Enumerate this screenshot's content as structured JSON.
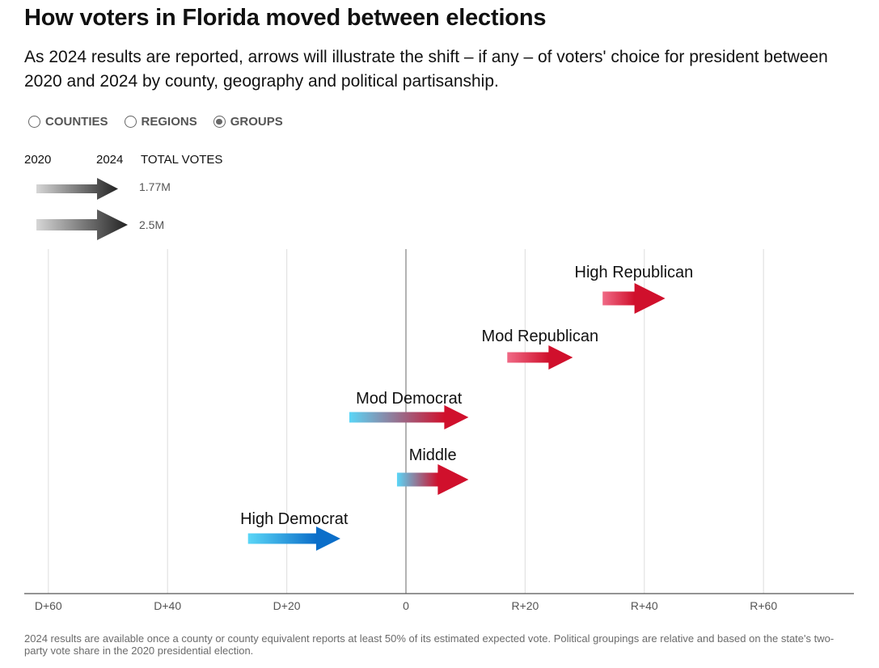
{
  "header": {
    "title": "How voters in Florida moved between elections",
    "subtitle": "As 2024 results are reported, arrows will illustrate the shift – if any – of voters' choice for president between 2020 and 2024 by county, geography and political partisanship."
  },
  "view_toggle": {
    "options": [
      {
        "label": "COUNTIES",
        "selected": false
      },
      {
        "label": "REGIONS",
        "selected": false
      },
      {
        "label": "GROUPS",
        "selected": true
      }
    ]
  },
  "legend": {
    "label_2020": "2020",
    "label_2024": "2024",
    "label_total": "TOTAL VOTES",
    "sizes": [
      {
        "value": "1.77M",
        "votes": 1770000
      },
      {
        "value": "2.5M",
        "votes": 2500000
      }
    ],
    "color_2020": "#d6d6d6",
    "color_2024": "#222222"
  },
  "chart_data": {
    "type": "arrow",
    "x_axis": {
      "min": -60,
      "max": 60,
      "ticks": [
        -60,
        -40,
        -20,
        0,
        20,
        40,
        60
      ],
      "tick_labels": [
        "D+60",
        "D+40",
        "D+20",
        "0",
        "R+20",
        "R+40",
        "R+60"
      ]
    },
    "grid": true,
    "series": [
      {
        "name": "High Republican",
        "from": 33,
        "to": 43.5,
        "color_from": "#f06a86",
        "color_to": "#d0102c",
        "votes": 2500000
      },
      {
        "name": "Mod Republican",
        "from": 17,
        "to": 28,
        "color_from": "#f06a86",
        "color_to": "#d0102c",
        "votes": 1770000
      },
      {
        "name": "Mod Democrat",
        "from": -9.5,
        "to": 10.5,
        "color_from": "#5ad6f7",
        "color_to": "#d0102c",
        "votes": 1770000
      },
      {
        "name": "Middle",
        "from": -1.5,
        "to": 10.5,
        "color_from": "#5ad6f7",
        "color_to": "#d0102c",
        "votes": 2500000
      },
      {
        "name": "High Democrat",
        "from": -26.5,
        "to": -11,
        "color_from": "#5ad6f7",
        "color_to": "#0b6ec9",
        "votes": 1770000
      }
    ]
  },
  "footnote": "2024 results are available once a county or county equivalent reports at least 50% of its estimated expected vote. Political groupings are relative and based on the state's two-party vote share in the 2020 presidential election."
}
